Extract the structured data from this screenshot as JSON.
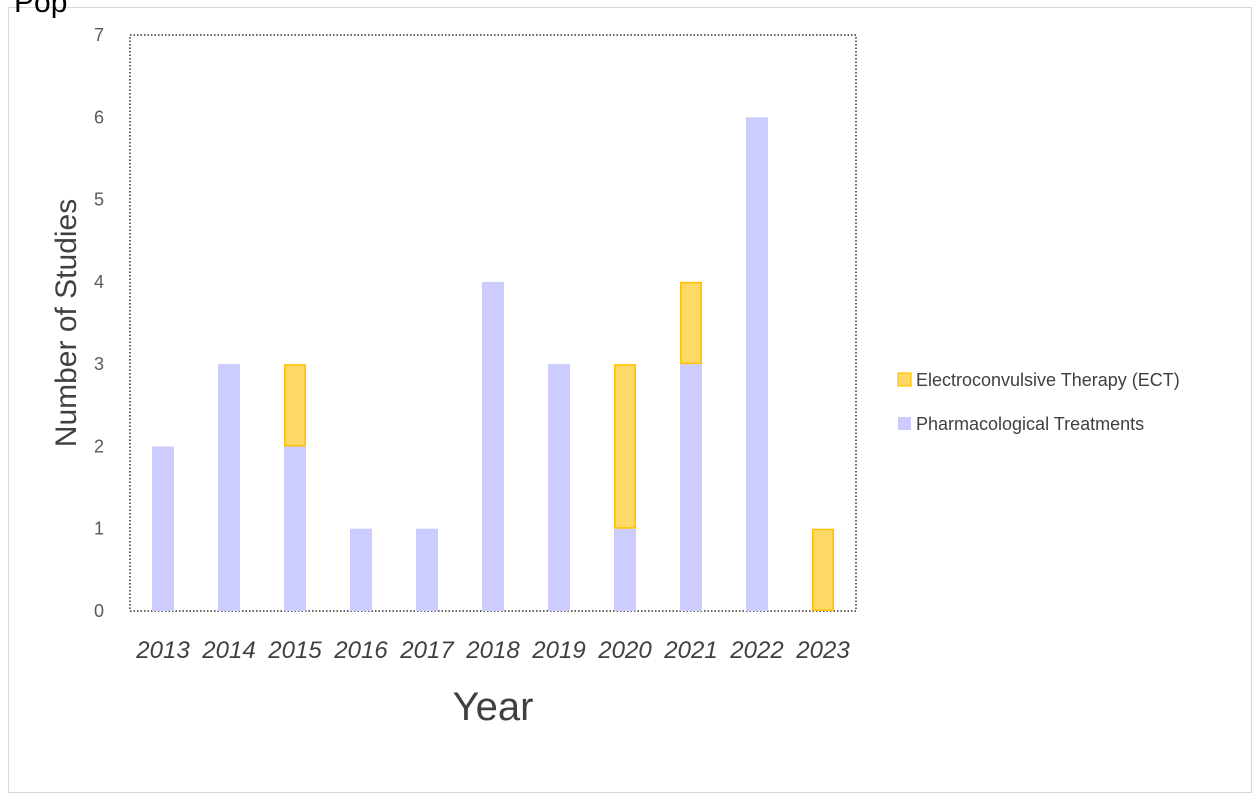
{
  "page": {
    "title": "Pop"
  },
  "chart_data": {
    "type": "bar",
    "stacked": true,
    "title": "",
    "xlabel": "Year",
    "ylabel": "Number of Studies",
    "ylim": [
      0,
      7
    ],
    "yticks": [
      0,
      1,
      2,
      3,
      4,
      5,
      6,
      7
    ],
    "grid": false,
    "legend_position": "right",
    "categories": [
      "2013",
      "2014",
      "2015",
      "2016",
      "2017",
      "2018",
      "2019",
      "2020",
      "2021",
      "2022",
      "2023"
    ],
    "series": [
      {
        "name": "Pharmacological Treatments",
        "values": [
          2,
          3,
          2,
          1,
          1,
          4,
          3,
          1,
          3,
          6,
          0
        ],
        "color": "#ccccff",
        "stroke": "none"
      },
      {
        "name": "Electroconvulsive Therapy (ECT)",
        "values": [
          0,
          0,
          1,
          0,
          0,
          0,
          0,
          2,
          1,
          0,
          1
        ],
        "color": "#ffd966",
        "stroke": "#ffc000"
      }
    ],
    "legend_order": [
      "Electroconvulsive Therapy (ECT)",
      "Pharmacological Treatments"
    ]
  }
}
